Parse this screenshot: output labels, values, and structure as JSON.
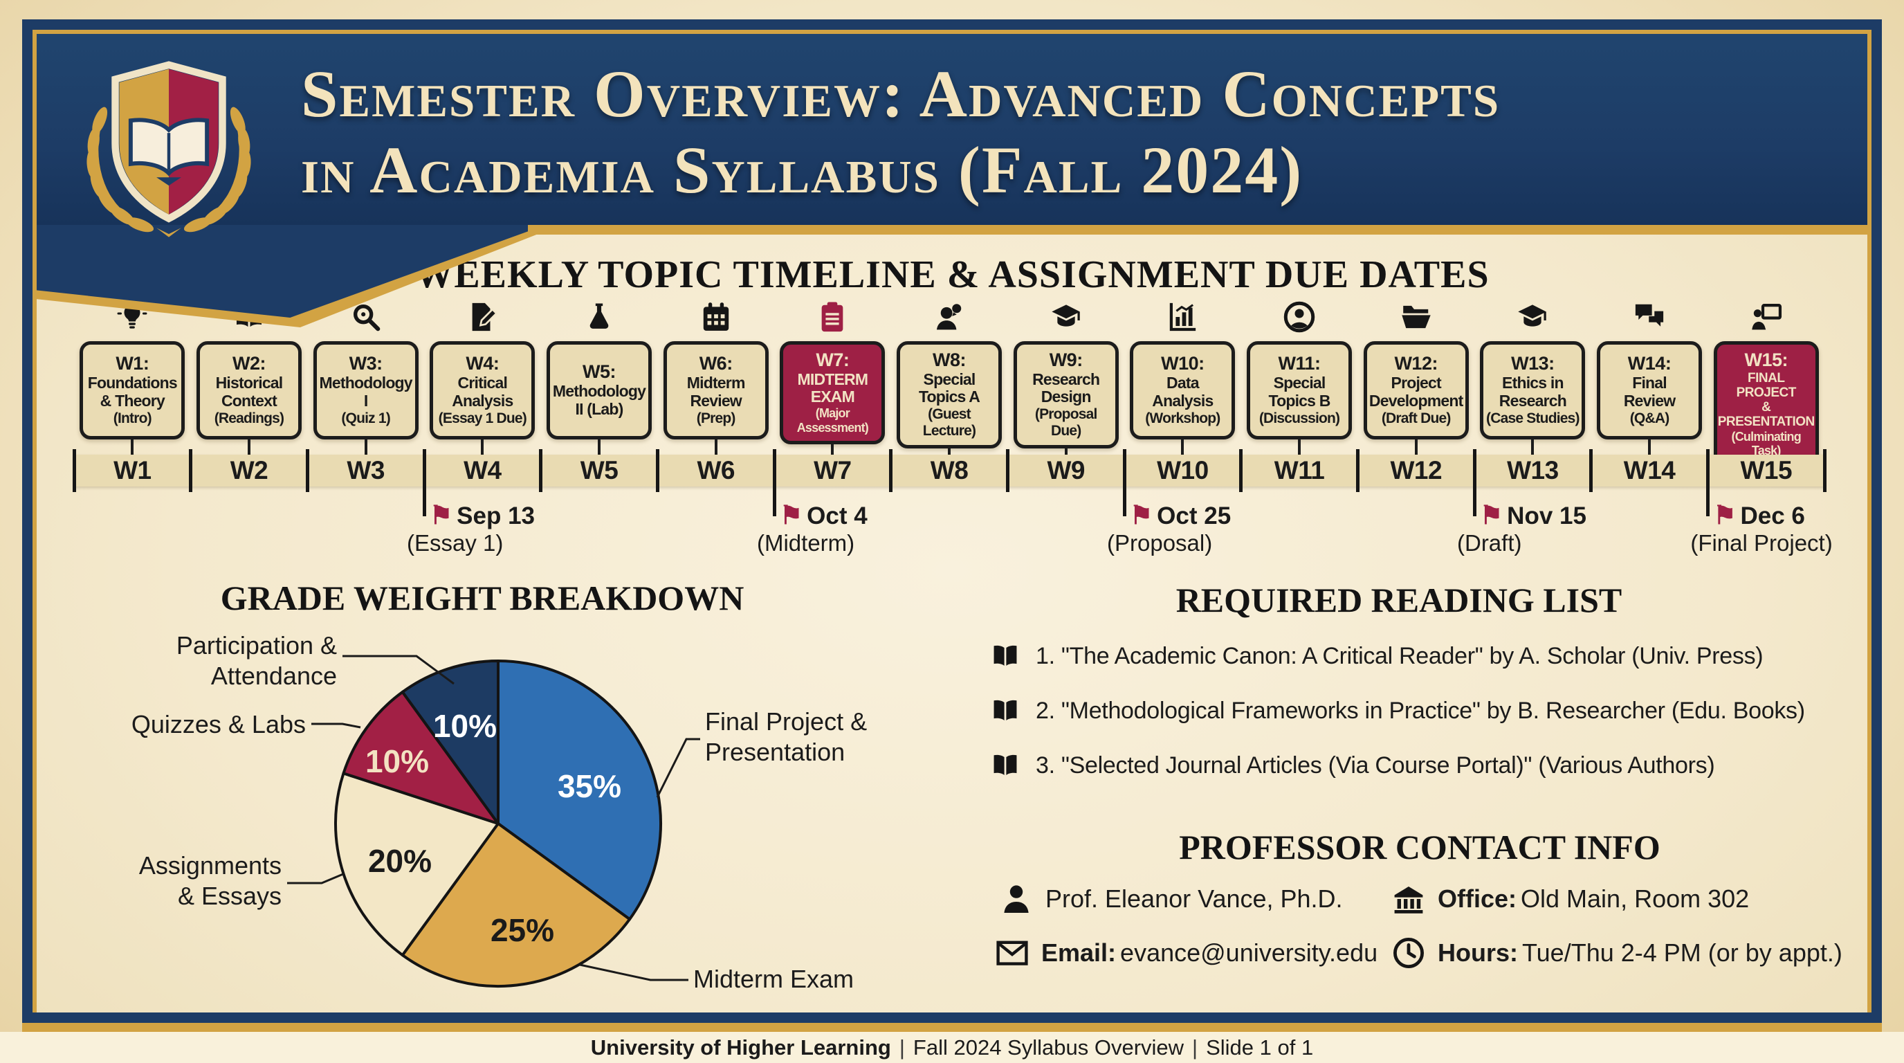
{
  "header": {
    "title_line1": "Semester Overview: Advanced Concepts",
    "title_line2": "in Academia Syllabus (Fall 2024)",
    "logo": "university-crest"
  },
  "timeline": {
    "heading": "WEEKLY TOPIC TIMELINE & ASSIGNMENT DUE DATES",
    "weeks": [
      {
        "week": "W1:",
        "topic": "Foundations\n& Theory",
        "note": "(Intro)",
        "icon": "lightbulb",
        "icon_tint": "ink",
        "highlight": false
      },
      {
        "week": "W2:",
        "topic": "Historical\nContext",
        "note": "(Readings)",
        "icon": "open-book",
        "icon_tint": "ink",
        "highlight": false
      },
      {
        "week": "W3:",
        "topic": "Methodology I",
        "note": "(Quiz 1)",
        "icon": "magnifier",
        "icon_tint": "ink",
        "highlight": false
      },
      {
        "week": "W4:",
        "topic": "Critical\nAnalysis",
        "note": "(Essay 1 Due)",
        "icon": "essay-edit",
        "icon_tint": "ink",
        "highlight": false
      },
      {
        "week": "W5:",
        "topic": "Methodology\nII (Lab)",
        "note": "",
        "icon": "flask",
        "icon_tint": "ink",
        "highlight": false
      },
      {
        "week": "W6:",
        "topic": "Midterm\nReview",
        "note": "(Prep)",
        "icon": "calendar",
        "icon_tint": "ink",
        "highlight": false
      },
      {
        "week": "W7:",
        "topic": "MIDTERM\nEXAM",
        "note": "(Major Assessment)",
        "icon": "clipboard",
        "icon_tint": "crimson",
        "highlight": true
      },
      {
        "week": "W8:",
        "topic": "Special\nTopics A",
        "note": "(Guest Lecture)",
        "icon": "guest-speaker",
        "icon_tint": "ink",
        "highlight": false
      },
      {
        "week": "W9:",
        "topic": "Research\nDesign",
        "note": "(Proposal Due)",
        "icon": "grad-cap",
        "icon_tint": "ink",
        "highlight": false
      },
      {
        "week": "W10:",
        "topic": "Data\nAnalysis",
        "note": "(Workshop)",
        "icon": "bar-chart",
        "icon_tint": "ink",
        "highlight": false
      },
      {
        "week": "W11:",
        "topic": "Special\nTopics B",
        "note": "(Discussion)",
        "icon": "user-circle",
        "icon_tint": "ink",
        "highlight": false
      },
      {
        "week": "W12:",
        "topic": "Project\nDevelopment",
        "note": "(Draft Due)",
        "icon": "open-folder",
        "icon_tint": "ink",
        "highlight": false
      },
      {
        "week": "W13:",
        "topic": "Ethics in\nResearch",
        "note": "(Case Studies)",
        "icon": "grad-cap",
        "icon_tint": "ink",
        "highlight": false
      },
      {
        "week": "W14:",
        "topic": "Final\nReview",
        "note": "(Q&A)",
        "icon": "chat-bubbles",
        "icon_tint": "ink",
        "highlight": false
      },
      {
        "week": "W15:",
        "topic": "FINAL PROJECT\n& PRESENTATION",
        "note": "(Culminating Task)",
        "icon": "presenter",
        "icon_tint": "ink",
        "highlight": true
      }
    ],
    "bar_labels": [
      "W1",
      "W2",
      "W3",
      "W4",
      "W5",
      "W6",
      "W7",
      "W8",
      "W9",
      "W10",
      "W11",
      "W12",
      "W13",
      "W14",
      "W15"
    ],
    "flag_glyph": "⚑",
    "flags": [
      {
        "date": "Sep 13",
        "label": "(Essay 1)",
        "after_week": 3
      },
      {
        "date": "Oct 4",
        "label": "(Midterm)",
        "after_week": 6
      },
      {
        "date": "Oct 25",
        "label": "(Proposal)",
        "after_week": 9
      },
      {
        "date": "Nov 15",
        "label": "(Draft)",
        "after_week": 12
      },
      {
        "date": "Dec 6",
        "label": "(Final Project)",
        "after_week": 14
      }
    ]
  },
  "chart_data": {
    "type": "pie",
    "title": "GRADE WEIGHT BREAKDOWN",
    "labels": [
      "Final Project & Presentation",
      "Midterm Exam",
      "Assignments & Essays",
      "Quizzes & Labs",
      "Participation & Attendance"
    ],
    "values": [
      35,
      25,
      20,
      10,
      10
    ],
    "pct_labels": [
      "35%",
      "25%",
      "20%",
      "10%",
      "10%"
    ],
    "colors": [
      "#2f6fb3",
      "#dda94e",
      "#f3e7c6",
      "#a22045",
      "#1d3b63"
    ],
    "pct_label_colors": [
      "#ffffff",
      "#1a1a1a",
      "#1a1a1a",
      "#f3e2c2",
      "#ffffff"
    ],
    "start_angle": "12 o'clock",
    "direction": "clockwise",
    "legend_position": "callout labels with leader lines"
  },
  "grades": {
    "heading": "GRADE WEIGHT BREAKDOWN",
    "callouts": {
      "participation": "Participation &\nAttendance",
      "quizzes": "Quizzes & Labs",
      "assignments": "Assignments\n& Essays",
      "final": "Final Project &\nPresentation",
      "midterm": "Midterm Exam"
    }
  },
  "reading": {
    "heading": "REQUIRED READING LIST",
    "items": [
      "1. \"The Academic Canon: A Critical Reader\" by A. Scholar (Univ. Press)",
      "2. \"Methodological Frameworks in Practice\" by B. Researcher (Edu. Books)",
      "3. \"Selected Journal Articles (Via Course Portal)\" (Various Authors)"
    ]
  },
  "contact": {
    "heading": "PROFESSOR CONTACT INFO",
    "name": "Prof. Eleanor Vance, Ph.D.",
    "office_label": "Office:",
    "office_value": "Old Main, Room 302",
    "email_label": "Email:",
    "email_value": "evance@university.edu",
    "hours_label": "Hours:",
    "hours_value": "Tue/Thu 2-4 PM (or by appt.)"
  },
  "footer": {
    "org": "University of Higher Learning",
    "separator": "|",
    "middle": "Fall 2024 Syllabus Overview",
    "slide": "Slide 1 of 1"
  },
  "colors": {
    "navy": "#1d3c66",
    "gold": "#d2a343",
    "crimson": "#9e2045",
    "parchment": "#f4e9cd",
    "card_cream": "#eadcb4",
    "header_text": "#f3e3bc"
  }
}
